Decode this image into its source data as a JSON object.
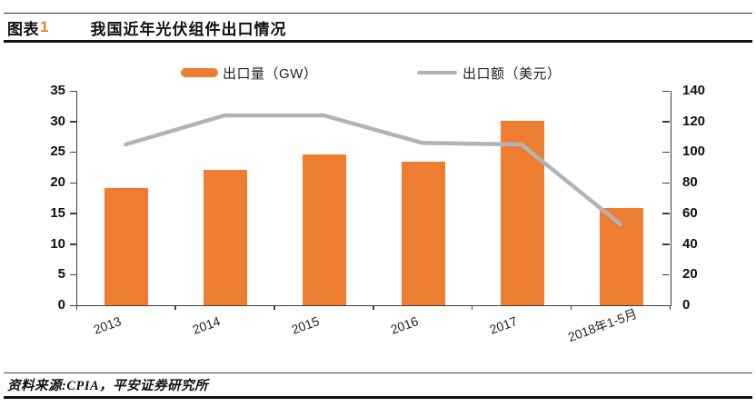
{
  "header": {
    "figure_label": "图表",
    "figure_number": "1",
    "title": "我国近年光伏组件出口情况"
  },
  "legend": {
    "items": [
      {
        "label": "出口量（GW）",
        "type": "bar",
        "color": "#ED7D31"
      },
      {
        "label": "出口额（美元）",
        "type": "line",
        "color": "#B3B3B3"
      }
    ]
  },
  "footer": {
    "source": "资料来源:CPIA，平安证券研究所"
  },
  "colors": {
    "bar": "#ED7D31",
    "line": "#B3B3B3",
    "axis": "#3f3f3f",
    "figure_number_accent": "#F07E26"
  },
  "chart_data": {
    "type": "bar",
    "subtype": "bar+line combo, dual axis",
    "categories": [
      "2013",
      "2014",
      "2015",
      "2016",
      "2017",
      "2018年1-5月"
    ],
    "series": [
      {
        "name": "出口量（GW）",
        "type": "bar",
        "axis": "left",
        "values": [
          19.1,
          22.1,
          24.6,
          23.5,
          30.1,
          15.8
        ],
        "color": "#ED7D31"
      },
      {
        "name": "出口额（美元）",
        "type": "line",
        "axis": "right",
        "values": [
          105,
          124,
          124,
          106,
          105,
          53
        ],
        "color": "#B3B3B3"
      }
    ],
    "left_axis": {
      "min": 0,
      "max": 35,
      "step": 5,
      "ticks": [
        0,
        5,
        10,
        15,
        20,
        25,
        30,
        35
      ]
    },
    "right_axis": {
      "min": 0,
      "max": 140,
      "step": 20,
      "ticks": [
        0,
        20,
        40,
        60,
        80,
        100,
        120,
        140
      ]
    },
    "grid": false,
    "legend_position": "top"
  }
}
